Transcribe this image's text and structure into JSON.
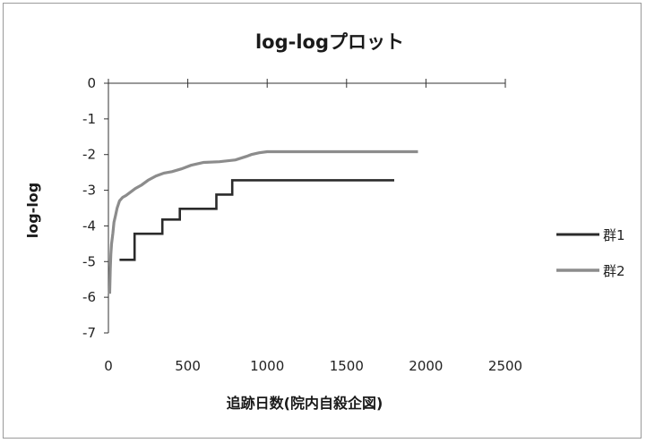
{
  "chart_data": {
    "type": "line",
    "title": "log-logプロット",
    "xlabel": "追跡日数(院内自殺企図)",
    "ylabel": "log-log",
    "xlim": [
      0,
      2500
    ],
    "ylim": [
      -7,
      0
    ],
    "x_ticks": [
      0,
      500,
      1000,
      1500,
      2000,
      2500
    ],
    "y_ticks": [
      0,
      -1,
      -2,
      -3,
      -4,
      -5,
      -6,
      -7
    ],
    "x_axis_position": "top",
    "grid": false,
    "legend": "right",
    "step": true,
    "series": [
      {
        "name": "群1",
        "color": "#2b2b2b",
        "x": [
          70,
          165,
          165,
          340,
          340,
          450,
          450,
          680,
          680,
          780,
          780,
          1800
        ],
        "y": [
          -4.95,
          -4.95,
          -4.22,
          -4.22,
          -3.82,
          -3.82,
          -3.52,
          -3.52,
          -3.12,
          -3.12,
          -2.72,
          -2.72
        ]
      },
      {
        "name": "群2",
        "color": "#8c8c8c",
        "x": [
          8,
          12,
          15,
          20,
          28,
          35,
          45,
          55,
          70,
          90,
          110,
          140,
          170,
          210,
          250,
          300,
          350,
          400,
          460,
          520,
          600,
          700,
          800,
          870,
          900,
          950,
          1000,
          1950
        ],
        "y": [
          -5.9,
          -5.2,
          -4.8,
          -4.5,
          -4.2,
          -3.9,
          -3.7,
          -3.5,
          -3.3,
          -3.2,
          -3.15,
          -3.05,
          -2.95,
          -2.85,
          -2.72,
          -2.6,
          -2.52,
          -2.48,
          -2.4,
          -2.3,
          -2.22,
          -2.2,
          -2.15,
          -2.05,
          -2.0,
          -1.95,
          -1.92,
          -1.92
        ]
      }
    ]
  }
}
